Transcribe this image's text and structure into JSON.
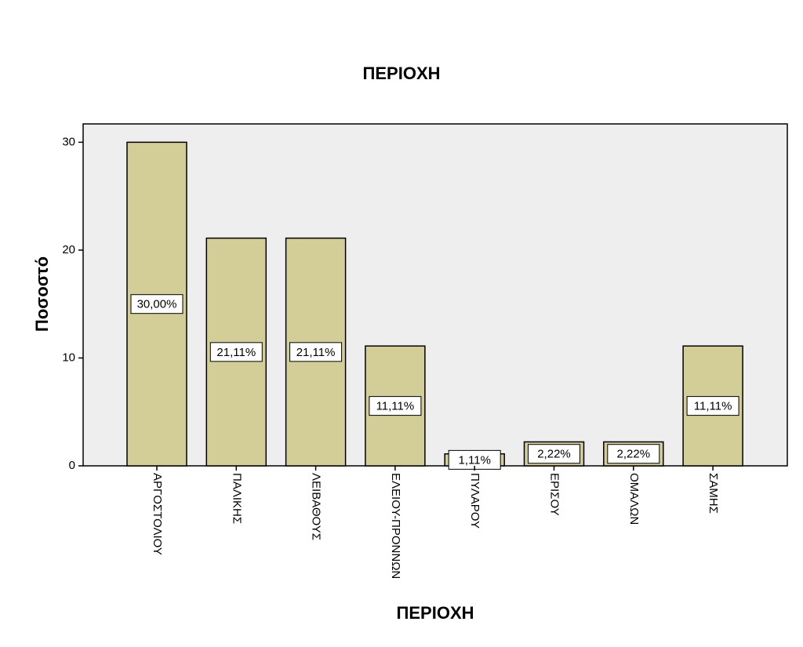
{
  "chart_data": {
    "type": "bar",
    "title": "ΠΕΡΙΟΧΗ",
    "x_label": "ΠΕΡΙΟΧΗ",
    "y_label": "Ποσοστό",
    "categories": [
      "ΑΡΓΟΣΤΟΛΙΟΥ",
      "ΠΑΛΙΚΗΣ",
      "ΛΕΙΒΑΘΟΥΣ",
      "ΕΛΕΙΟΥ-ΠΡΟΝΝΩΝ",
      "ΠΥΛΑΡΟΥ",
      "ΕΡΙΣΟΥ",
      "ΟΜΑΛΩΝ",
      "ΣΑΜΗΣ"
    ],
    "values": [
      30,
      21.11,
      21.11,
      11.11,
      1.11,
      2.22,
      2.22,
      11.11
    ],
    "value_labels": [
      "30,00%",
      "21,11%",
      "21,11%",
      "11,11%",
      "1,11%",
      "2,22%",
      "2,22%",
      "11,11%"
    ],
    "color": "#d3ce97",
    "ylim": [
      0,
      31.7
    ],
    "yticks": [
      0,
      10,
      20,
      30
    ]
  }
}
